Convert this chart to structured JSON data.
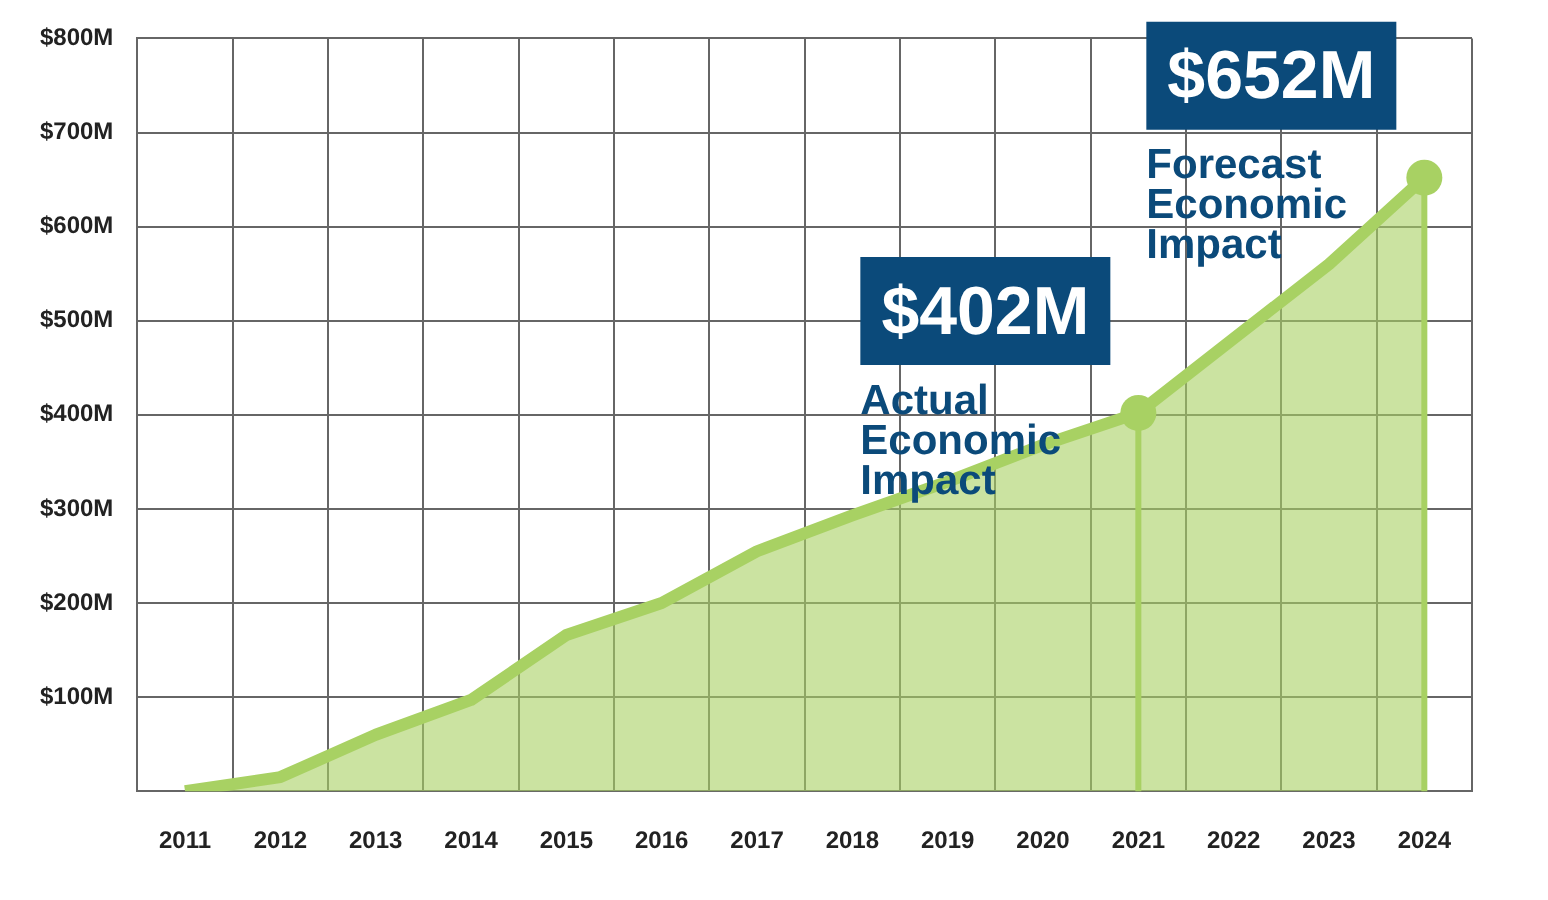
{
  "chart_data": {
    "type": "area",
    "categories": [
      "2011",
      "2012",
      "2013",
      "2014",
      "2015",
      "2016",
      "2017",
      "2018",
      "2019",
      "2020",
      "2021",
      "2022",
      "2023",
      "2024"
    ],
    "series": [
      {
        "color": "#a8d163",
        "values": [
          0,
          15,
          60,
          97,
          166,
          200,
          255,
          293,
          329,
          368,
          402,
          481,
          560,
          652
        ]
      }
    ],
    "ylim": [
      0,
      800
    ],
    "yticks": [
      {
        "value": 0,
        "label": null
      },
      {
        "value": 100,
        "label": "$100M"
      },
      {
        "value": 200,
        "label": "$200M"
      },
      {
        "value": 300,
        "label": "$300M"
      },
      {
        "value": 400,
        "label": "$400M"
      },
      {
        "value": 500,
        "label": "$500M"
      },
      {
        "value": 600,
        "label": "$600M"
      },
      {
        "value": 700,
        "label": "$700M"
      },
      {
        "value": 800,
        "label": "$800M"
      }
    ],
    "grid": true,
    "legend": false,
    "marker": "none",
    "line_style": "solid",
    "ref_lines": [
      {
        "axis": "x",
        "value": "2021",
        "color": "#a8d163"
      },
      {
        "axis": "x",
        "value": "2024",
        "color": "#a8d163"
      }
    ],
    "annotations": [
      {
        "text": "$402M",
        "x": "2021",
        "y": 402
      },
      "Actual Economic Impact",
      {
        "text": "$652M",
        "x": "2024",
        "y": 652
      },
      "Forecast Economic Impact"
    ]
  }
}
